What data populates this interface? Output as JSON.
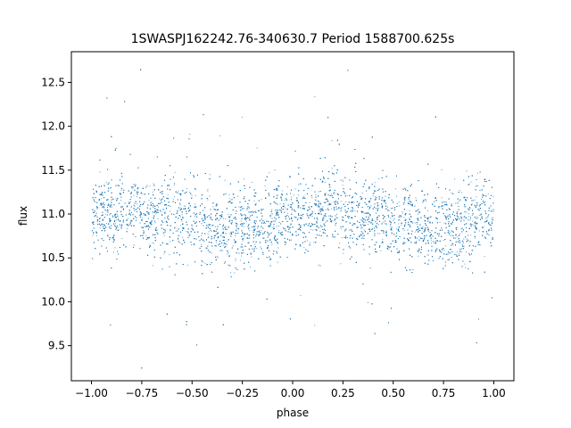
{
  "chart_data": {
    "type": "scatter",
    "title": "1SWASPJ162242.76-340630.7 Period 1588700.625s",
    "xlabel": "phase",
    "ylabel": "flux",
    "xlim": [
      -1.1,
      1.1
    ],
    "ylim": [
      9.1,
      12.85
    ],
    "x_ticks": [
      -1.0,
      -0.75,
      -0.5,
      -0.25,
      0.0,
      0.25,
      0.5,
      0.75,
      1.0
    ],
    "x_tick_labels": [
      "−1.00",
      "−0.75",
      "−0.50",
      "−0.25",
      "0.00",
      "0.25",
      "0.50",
      "0.75",
      "1.00"
    ],
    "y_ticks": [
      9.5,
      10.0,
      10.5,
      11.0,
      11.5,
      12.0,
      12.5
    ],
    "y_tick_labels": [
      "9.5",
      "10.0",
      "10.5",
      "11.0",
      "11.5",
      "12.0",
      "12.5"
    ],
    "grid": false,
    "legend": "none",
    "point_color": "#1f77b4",
    "series": [
      {
        "points_summary": {
          "phase_range": [
            -1.0,
            1.0
          ],
          "typical_flux": 10.95,
          "core_spread": [
            10.5,
            11.5
          ],
          "full_range": [
            9.25,
            12.65
          ],
          "n_points": 9000
        },
        "x": [
          -1.0,
          -0.9,
          -0.8,
          -0.7,
          -0.6,
          -0.5,
          -0.4,
          -0.3,
          -0.2,
          -0.1,
          0.0,
          0.1,
          0.2,
          0.3,
          0.4,
          0.5,
          0.6,
          0.7,
          0.8,
          0.9,
          1.0
        ],
        "y": [
          11.0,
          10.95,
          11.05,
          10.95,
          11.0,
          10.9,
          10.85,
          10.8,
          10.85,
          10.9,
          11.0,
          10.95,
          11.05,
          10.95,
          11.0,
          10.9,
          10.85,
          10.8,
          10.85,
          10.95,
          11.0
        ]
      }
    ]
  }
}
